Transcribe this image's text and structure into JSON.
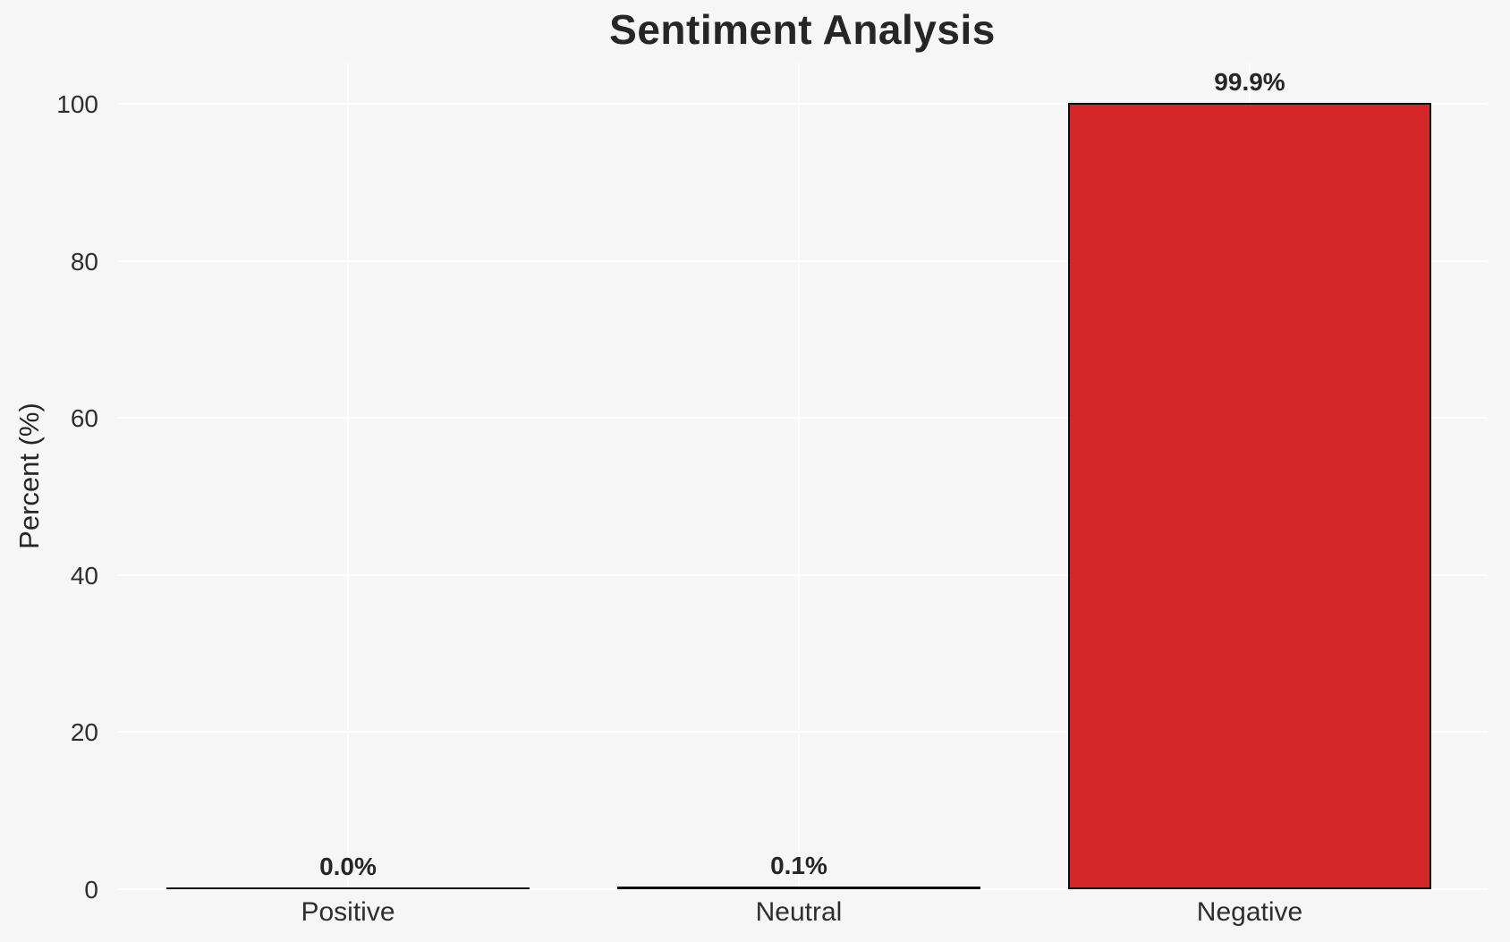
{
  "chart_data": {
    "type": "bar",
    "title": "Sentiment Analysis",
    "xlabel": "",
    "ylabel": "Percent (%)",
    "categories": [
      "Positive",
      "Neutral",
      "Negative"
    ],
    "values": [
      0.0,
      0.1,
      99.9
    ],
    "bar_value_labels": [
      "0.0%",
      "0.1%",
      "99.9%"
    ],
    "yticks": [
      0,
      20,
      40,
      60,
      80,
      100
    ],
    "ylim": [
      0,
      105
    ],
    "grid": "on",
    "legend_position": "none",
    "colors": {
      "background": "#f6f6f7",
      "gridline": "#ffffff",
      "bar_fill": "#d62728",
      "bar_edge": "#0e0e0e",
      "title_text": "#262626",
      "tick_text": "#2e2e2e"
    }
  }
}
